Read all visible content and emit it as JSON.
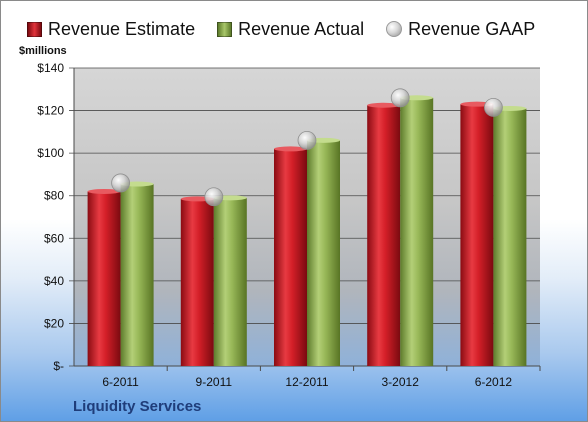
{
  "legend": {
    "items": [
      {
        "label": "Revenue Estimate",
        "color": "#c0141c"
      },
      {
        "label": "Revenue Actual",
        "color": "#8cac4c"
      },
      {
        "label": "Revenue GAAP",
        "color": "#bdbdbd"
      }
    ]
  },
  "unit_label": "$millions",
  "company": "Liquidity Services",
  "chart_data": {
    "type": "bar",
    "categories": [
      "6-2011",
      "9-2011",
      "12-2011",
      "3-2012",
      "6-2012"
    ],
    "series": [
      {
        "name": "Revenue Estimate",
        "type": "bar",
        "color": "#c0141c",
        "values": [
          82,
          78.5,
          102,
          122.5,
          123
        ]
      },
      {
        "name": "Revenue Actual",
        "type": "bar",
        "color": "#8cac4c",
        "values": [
          85.5,
          79,
          106,
          126,
          121
        ]
      },
      {
        "name": "Revenue GAAP",
        "type": "bubble",
        "color": "#bdbdbd",
        "values": [
          86,
          79.5,
          106,
          126,
          121.5
        ]
      }
    ],
    "ylim": [
      0,
      140
    ],
    "ytick_values": [
      0,
      20,
      40,
      60,
      80,
      100,
      120,
      140
    ],
    "ytick_labels": [
      "$-",
      "$20",
      "$40",
      "$60",
      "$80",
      "$100",
      "$120",
      "$140"
    ],
    "grid": true,
    "legend_position": "top"
  }
}
